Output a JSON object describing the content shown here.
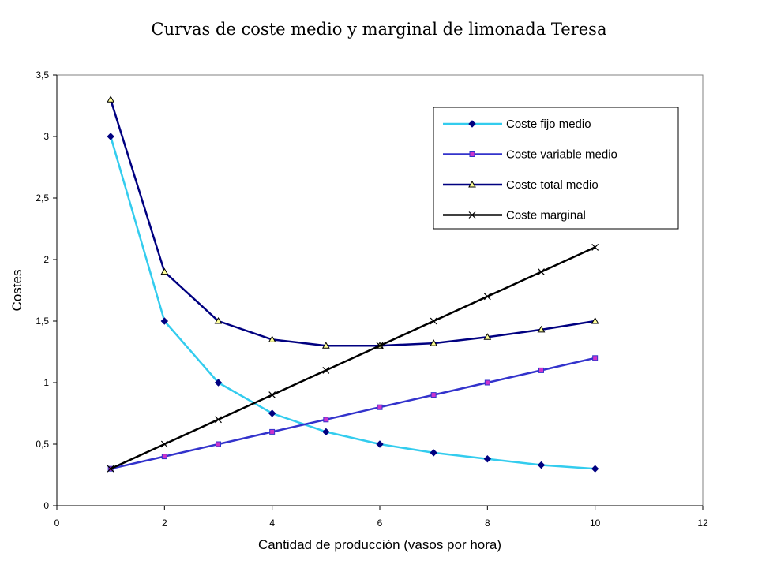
{
  "chart_data": {
    "type": "line",
    "title": "Curvas de coste medio y marginal de limonada Teresa",
    "xlabel": "Cantidad de producción (vasos por hora)",
    "ylabel": "Costes",
    "xlim": [
      0,
      12
    ],
    "ylim": [
      0,
      3.5
    ],
    "x_ticks": [
      "0",
      "2",
      "4",
      "6",
      "8",
      "10",
      "12"
    ],
    "y_ticks": [
      "0",
      "0,5",
      "1",
      "1,5",
      "2",
      "2,5",
      "3",
      "3,5"
    ],
    "grid": false,
    "legend_position": "top-right",
    "x": [
      1,
      2,
      3,
      4,
      5,
      6,
      7,
      8,
      9,
      10
    ],
    "series": [
      {
        "name": "Coste fijo medio",
        "color": "#33CCEE",
        "marker": "diamond",
        "marker_color": "#000080",
        "values": [
          3.0,
          1.5,
          1.0,
          0.75,
          0.6,
          0.5,
          0.43,
          0.38,
          0.33,
          0.3
        ]
      },
      {
        "name": "Coste variable medio",
        "color": "#3333CC",
        "marker": "square",
        "marker_color": "#CC33CC",
        "values": [
          0.3,
          0.4,
          0.5,
          0.6,
          0.7,
          0.8,
          0.9,
          1.0,
          1.1,
          1.2
        ]
      },
      {
        "name": "Coste total medio",
        "color": "#000080",
        "marker": "triangle",
        "marker_color": "#FFFF99",
        "values": [
          3.3,
          1.9,
          1.5,
          1.35,
          1.3,
          1.3,
          1.32,
          1.37,
          1.43,
          1.5
        ]
      },
      {
        "name": "Coste marginal",
        "color": "#000000",
        "marker": "x",
        "marker_color": "#000000",
        "values": [
          0.3,
          0.5,
          0.7,
          0.9,
          1.1,
          1.3,
          1.5,
          1.7,
          1.9,
          2.1
        ]
      }
    ]
  }
}
